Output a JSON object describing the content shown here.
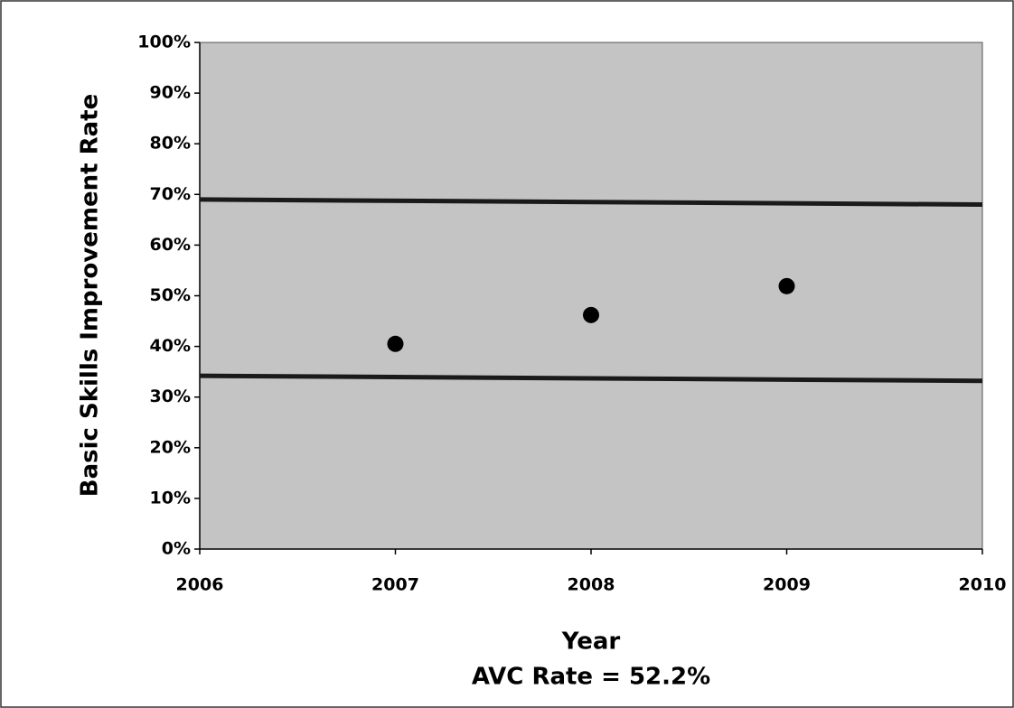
{
  "chart_data": {
    "type": "scatter",
    "x_label": "Year",
    "y_label": "Basic Skills Improvement Rate",
    "annotation": "AVC Rate = 52.2%",
    "xlim": [
      2006,
      2010
    ],
    "xticks": [
      2006,
      2007,
      2008,
      2009,
      2010
    ],
    "ylim": [
      0,
      100
    ],
    "yticks": [
      {
        "value": 0,
        "label": "0%"
      },
      {
        "value": 10,
        "label": "10%"
      },
      {
        "value": 20,
        "label": "20%"
      },
      {
        "value": 30,
        "label": "30%"
      },
      {
        "value": 40,
        "label": "40%"
      },
      {
        "value": 50,
        "label": "50%"
      },
      {
        "value": 60,
        "label": "60%"
      },
      {
        "value": 70,
        "label": "70%"
      },
      {
        "value": 80,
        "label": "80%"
      },
      {
        "value": 90,
        "label": "90%"
      },
      {
        "value": 100,
        "label": "100%"
      }
    ],
    "background": "#c4c4c4",
    "series": [
      {
        "type": "scatter",
        "color": "#000000",
        "x": [
          2007,
          2008,
          2009
        ],
        "values": [
          40.5,
          46.2,
          51.9
        ]
      },
      {
        "type": "line",
        "color": "#1a1a1a",
        "x": [
          2006,
          2010
        ],
        "values": [
          69.0,
          68.0
        ]
      },
      {
        "type": "line",
        "color": "#1a1a1a",
        "x": [
          2006,
          2010
        ],
        "values": [
          34.2,
          33.2
        ]
      }
    ]
  }
}
